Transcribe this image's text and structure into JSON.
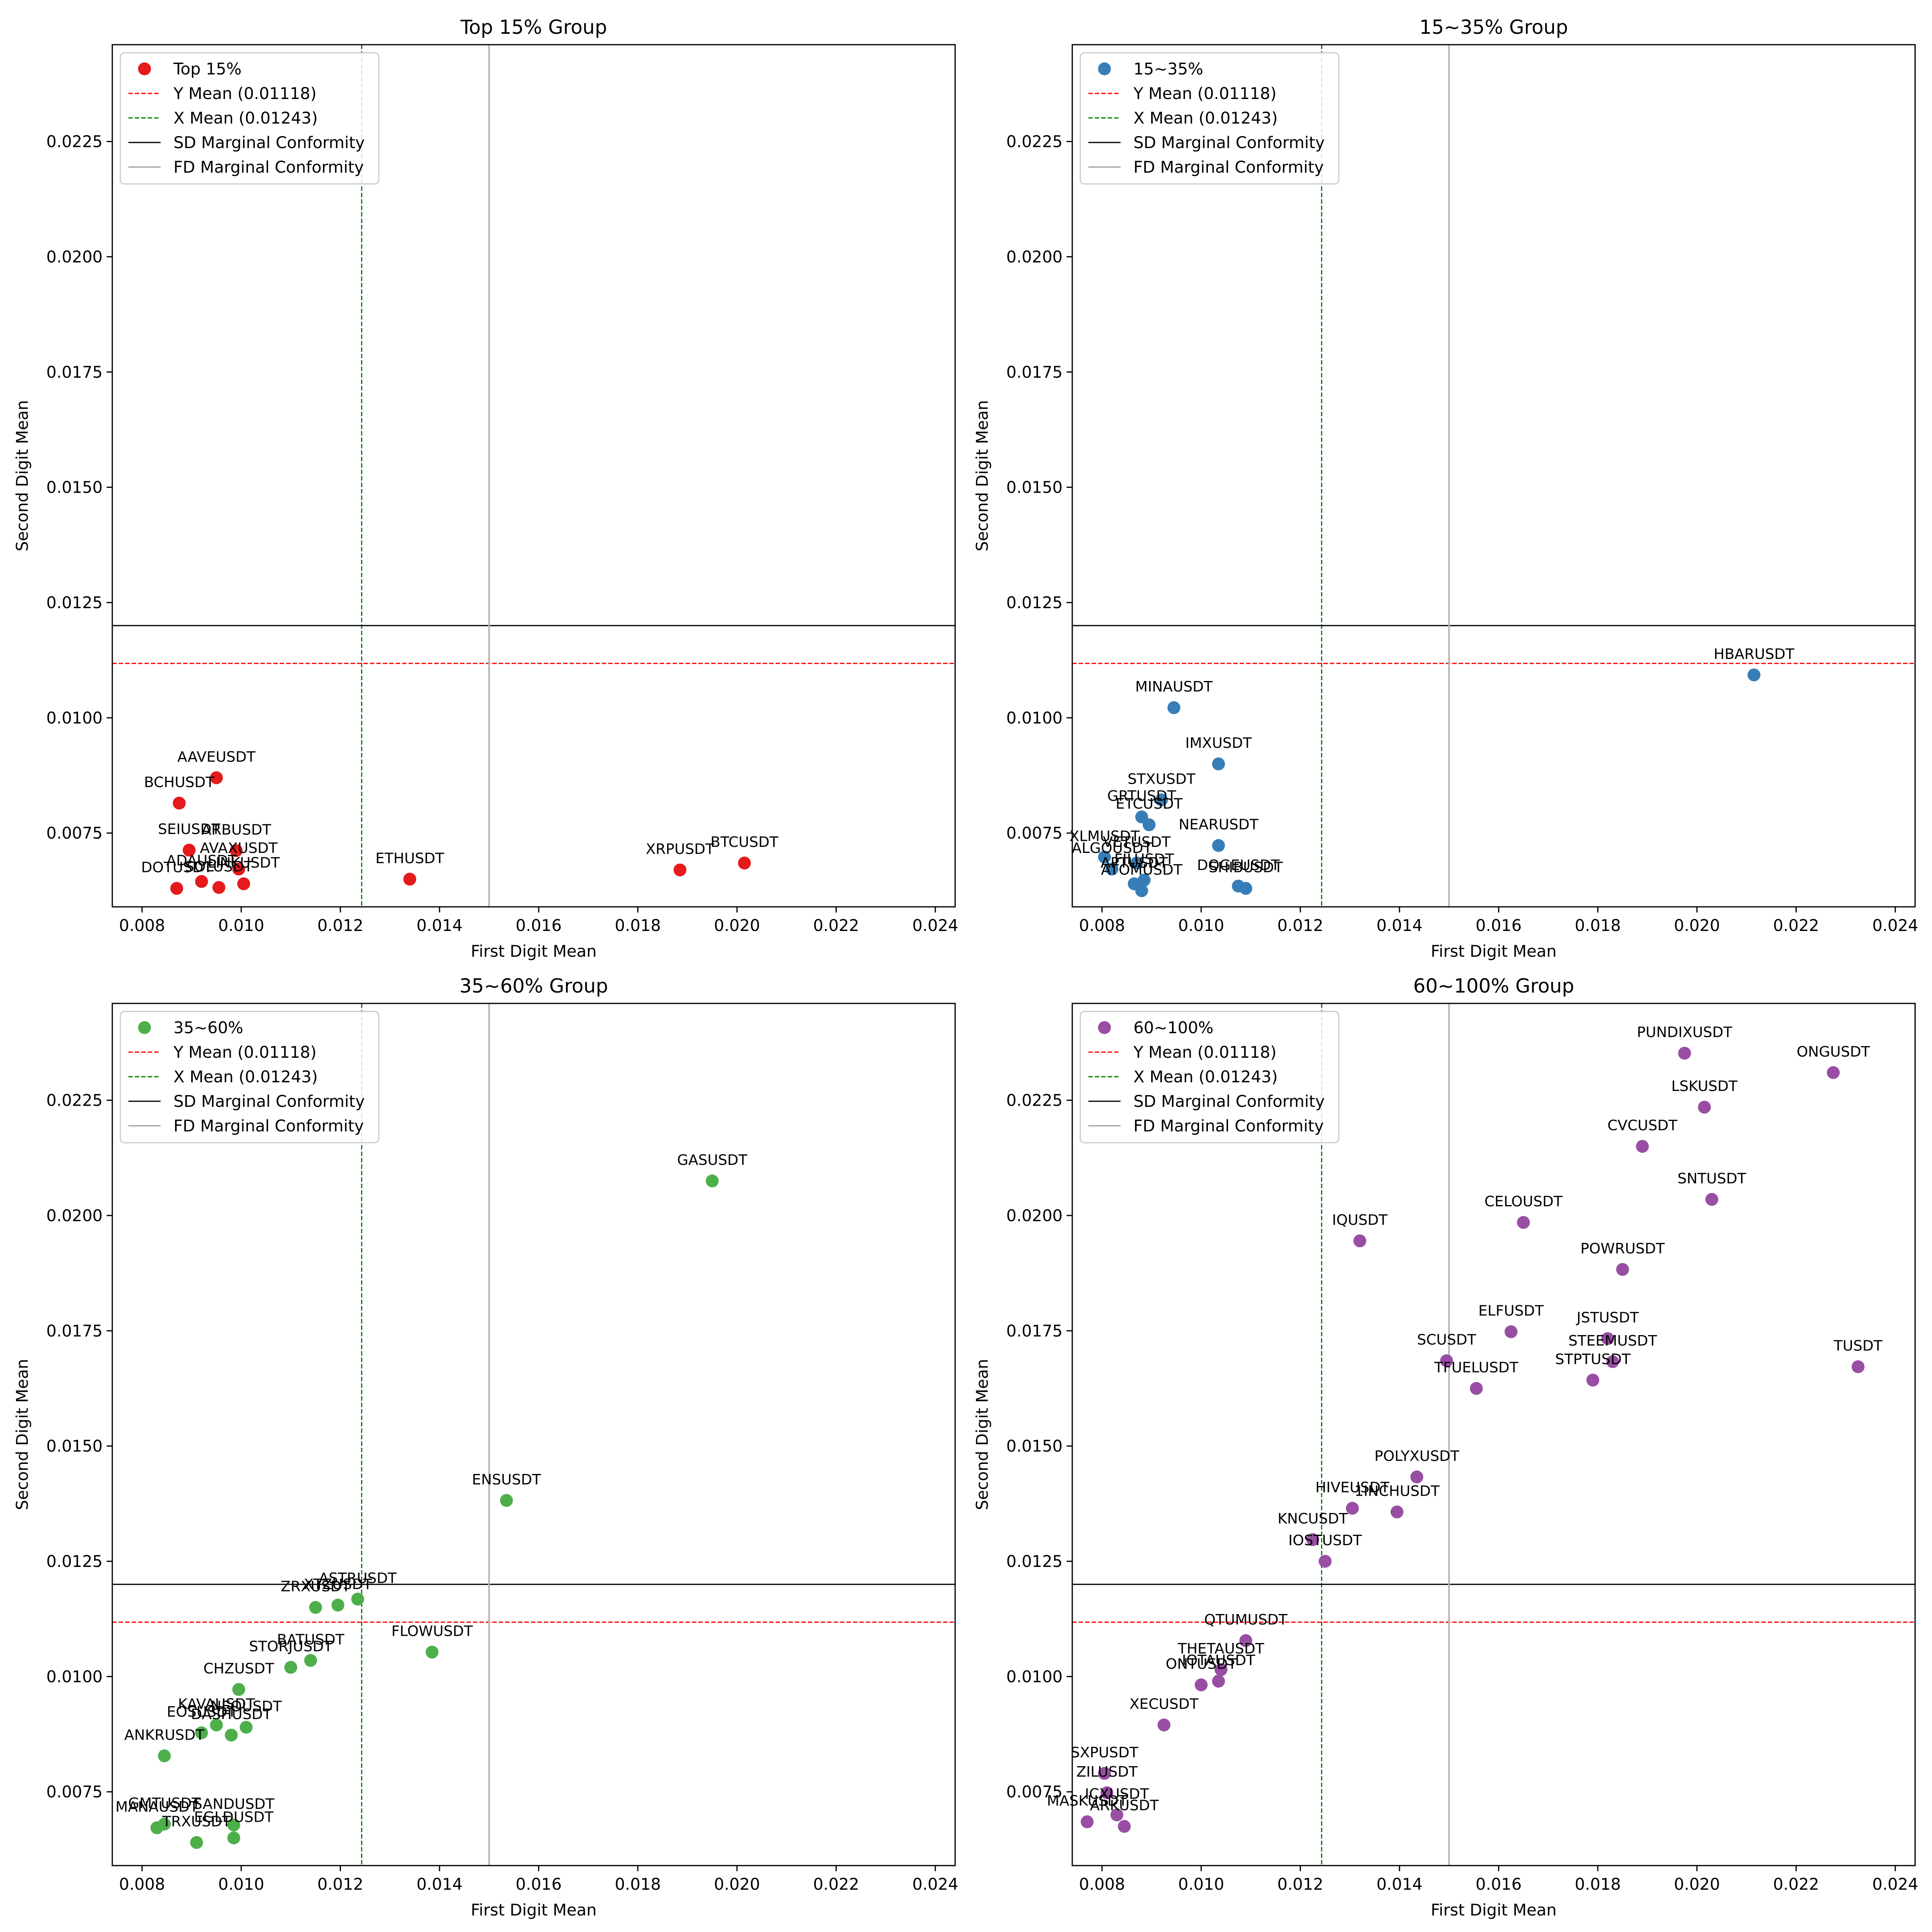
{
  "chart_data": [
    {
      "type": "scatter",
      "title": "Top 15% Group",
      "xlabel": "First Digit Mean",
      "ylabel": "Second Digit Mean",
      "xlim": [
        0.0074,
        0.0244
      ],
      "ylim": [
        0.0059,
        0.0246
      ],
      "xticks": [
        "0.008",
        "0.010",
        "0.012",
        "0.014",
        "0.016",
        "0.018",
        "0.020",
        "0.022",
        "0.024"
      ],
      "yticks": [
        "0.0075",
        "0.0100",
        "0.0125",
        "0.0150",
        "0.0175",
        "0.0200",
        "0.0225"
      ],
      "color": "#e41a1c",
      "legend_position": "top-left",
      "legend": [
        "Top 15%",
        "Y Mean (0.01118)",
        "X Mean (0.01243)",
        "SD Marginal Conformity",
        "FD Marginal Conformity"
      ],
      "reference_lines": {
        "y_mean": 0.01118,
        "x_mean": 0.01243,
        "sd_conformity_y": 0.012,
        "fd_conformity_x": 0.015
      },
      "points": [
        {
          "label": "AAVEUSDT",
          "x": 0.0095,
          "y": 0.0087
        },
        {
          "label": "BCHUSDT",
          "x": 0.00875,
          "y": 0.00815
        },
        {
          "label": "SEIUSDT",
          "x": 0.00895,
          "y": 0.00713
        },
        {
          "label": "ARBUSDT",
          "x": 0.0099,
          "y": 0.00712
        },
        {
          "label": "AVAXUSDT",
          "x": 0.00995,
          "y": 0.00672
        },
        {
          "label": "ADAUSDT",
          "x": 0.0092,
          "y": 0.00645
        },
        {
          "label": "SOLUSDT",
          "x": 0.00955,
          "y": 0.00632
        },
        {
          "label": "LINKUSDT",
          "x": 0.01005,
          "y": 0.0064
        },
        {
          "label": "DOTUSDT",
          "x": 0.0087,
          "y": 0.0063
        },
        {
          "label": "ETHUSDT",
          "x": 0.0134,
          "y": 0.0065
        },
        {
          "label": "XRPUSDT",
          "x": 0.01885,
          "y": 0.0067
        },
        {
          "label": "BTCUSDT",
          "x": 0.02015,
          "y": 0.00685
        }
      ]
    },
    {
      "type": "scatter",
      "title": "15~35% Group",
      "xlabel": "First Digit Mean",
      "ylabel": "Second Digit Mean",
      "xlim": [
        0.0074,
        0.0244
      ],
      "ylim": [
        0.0059,
        0.0246
      ],
      "xticks": [
        "0.008",
        "0.010",
        "0.012",
        "0.014",
        "0.016",
        "0.018",
        "0.020",
        "0.022",
        "0.024"
      ],
      "yticks": [
        "0.0075",
        "0.0100",
        "0.0125",
        "0.0150",
        "0.0175",
        "0.0200",
        "0.0225"
      ],
      "color": "#377eb8",
      "legend_position": "top-left",
      "legend": [
        "15~35%",
        "Y Mean (0.01118)",
        "X Mean (0.01243)",
        "SD Marginal Conformity",
        "FD Marginal Conformity"
      ],
      "reference_lines": {
        "y_mean": 0.01118,
        "x_mean": 0.01243,
        "sd_conformity_y": 0.012,
        "fd_conformity_x": 0.015
      },
      "points": [
        {
          "label": "HBARUSDT",
          "x": 0.02115,
          "y": 0.01093
        },
        {
          "label": "MINAUSDT",
          "x": 0.00945,
          "y": 0.01022
        },
        {
          "label": "IMXUSDT",
          "x": 0.01035,
          "y": 0.009
        },
        {
          "label": "STXUSDT",
          "x": 0.0092,
          "y": 0.00822
        },
        {
          "label": "GRTUSDT",
          "x": 0.0088,
          "y": 0.00785
        },
        {
          "label": "ETCUSDT",
          "x": 0.00895,
          "y": 0.00768
        },
        {
          "label": "NEARUSDT",
          "x": 0.01035,
          "y": 0.00723
        },
        {
          "label": "XLMUSDT",
          "x": 0.00805,
          "y": 0.00698
        },
        {
          "label": "VETUSDT",
          "x": 0.0087,
          "y": 0.00685
        },
        {
          "label": "ALGOUSDT",
          "x": 0.0082,
          "y": 0.00672
        },
        {
          "label": "APTUSDT",
          "x": 0.00865,
          "y": 0.0064
        },
        {
          "label": "FILUSDT",
          "x": 0.00885,
          "y": 0.00648
        },
        {
          "label": "ATOMUSDT",
          "x": 0.0088,
          "y": 0.00625
        },
        {
          "label": "DOGEUSDT",
          "x": 0.01075,
          "y": 0.00635
        },
        {
          "label": "SHIBUSDT",
          "x": 0.0109,
          "y": 0.0063
        }
      ]
    },
    {
      "type": "scatter",
      "title": "35~60% Group",
      "xlabel": "First Digit Mean",
      "ylabel": "Second Digit Mean",
      "xlim": [
        0.0074,
        0.0244
      ],
      "ylim": [
        0.0059,
        0.0246
      ],
      "xticks": [
        "0.008",
        "0.010",
        "0.012",
        "0.014",
        "0.016",
        "0.018",
        "0.020",
        "0.022",
        "0.024"
      ],
      "yticks": [
        "0.0075",
        "0.0100",
        "0.0125",
        "0.0150",
        "0.0175",
        "0.0200",
        "0.0225"
      ],
      "color": "#4daf4a",
      "legend_position": "top-left",
      "legend": [
        "35~60%",
        "Y Mean (0.01118)",
        "X Mean (0.01243)",
        "SD Marginal Conformity",
        "FD Marginal Conformity"
      ],
      "reference_lines": {
        "y_mean": 0.01118,
        "x_mean": 0.01243,
        "sd_conformity_y": 0.012,
        "fd_conformity_x": 0.015
      },
      "points": [
        {
          "label": "GASUSDT",
          "x": 0.0195,
          "y": 0.02075
        },
        {
          "label": "ENSUSDT",
          "x": 0.01535,
          "y": 0.01382
        },
        {
          "label": "ASTRUSDT",
          "x": 0.01235,
          "y": 0.01168
        },
        {
          "label": "XTZUSDT",
          "x": 0.01195,
          "y": 0.01155
        },
        {
          "label": "ZRXUSDT",
          "x": 0.0115,
          "y": 0.0115
        },
        {
          "label": "FLOWUSDT",
          "x": 0.01385,
          "y": 0.01053
        },
        {
          "label": "BATUSDT",
          "x": 0.0114,
          "y": 0.01035
        },
        {
          "label": "STORJUSDT",
          "x": 0.011,
          "y": 0.0102
        },
        {
          "label": "CHZUSDT",
          "x": 0.00995,
          "y": 0.00972
        },
        {
          "label": "KAVAUSDT",
          "x": 0.0095,
          "y": 0.00895
        },
        {
          "label": "NEOUSDT",
          "x": 0.0101,
          "y": 0.0089
        },
        {
          "label": "EOSUSDT",
          "x": 0.0092,
          "y": 0.00878
        },
        {
          "label": "DASHUSDT",
          "x": 0.0098,
          "y": 0.00873
        },
        {
          "label": "ANKRUSDT",
          "x": 0.00845,
          "y": 0.00828
        },
        {
          "label": "GMTUSDT",
          "x": 0.00845,
          "y": 0.0068
        },
        {
          "label": "MANAUSDT",
          "x": 0.0083,
          "y": 0.00672
        },
        {
          "label": "SANDUSDT",
          "x": 0.00985,
          "y": 0.00678
        },
        {
          "label": "TRXUSDT",
          "x": 0.0091,
          "y": 0.0064
        },
        {
          "label": "EGLDUSDT",
          "x": 0.00985,
          "y": 0.0065
        }
      ]
    },
    {
      "type": "scatter",
      "title": "60~100% Group",
      "xlabel": "First Digit Mean",
      "ylabel": "Second Digit Mean",
      "xlim": [
        0.0074,
        0.0244
      ],
      "ylim": [
        0.0059,
        0.0246
      ],
      "xticks": [
        "0.008",
        "0.010",
        "0.012",
        "0.014",
        "0.016",
        "0.018",
        "0.020",
        "0.022",
        "0.024"
      ],
      "yticks": [
        "0.0075",
        "0.0100",
        "0.0125",
        "0.0150",
        "0.0175",
        "0.0200",
        "0.0225"
      ],
      "color": "#984ea3",
      "legend_position": "top-left",
      "legend": [
        "60~100%",
        "Y Mean (0.01118)",
        "X Mean (0.01243)",
        "SD Marginal Conformity",
        "FD Marginal Conformity"
      ],
      "reference_lines": {
        "y_mean": 0.01118,
        "x_mean": 0.01243,
        "sd_conformity_y": 0.012,
        "fd_conformity_x": 0.015
      },
      "points": [
        {
          "label": "PUNDIXUSDT",
          "x": 0.01975,
          "y": 0.02352
        },
        {
          "label": "ONGUSDT",
          "x": 0.02275,
          "y": 0.0231
        },
        {
          "label": "LSKUSDT",
          "x": 0.02015,
          "y": 0.02235
        },
        {
          "label": "CVCUSDT",
          "x": 0.0189,
          "y": 0.0215
        },
        {
          "label": "SNTUSDT",
          "x": 0.0203,
          "y": 0.02035
        },
        {
          "label": "CELOUSDT",
          "x": 0.0165,
          "y": 0.01985
        },
        {
          "label": "IQUSDT",
          "x": 0.0132,
          "y": 0.01945
        },
        {
          "label": "POWRUSDT",
          "x": 0.0185,
          "y": 0.01883
        },
        {
          "label": "ELFUSDT",
          "x": 0.01625,
          "y": 0.01748
        },
        {
          "label": "JSTUSDT",
          "x": 0.0182,
          "y": 0.01733
        },
        {
          "label": "SCUSDT",
          "x": 0.01495,
          "y": 0.01685
        },
        {
          "label": "STEEMUSDT",
          "x": 0.0183,
          "y": 0.01683
        },
        {
          "label": "TUSDT",
          "x": 0.02325,
          "y": 0.01672
        },
        {
          "label": "STPTUSDT",
          "x": 0.0179,
          "y": 0.01643
        },
        {
          "label": "TFUELUSDT",
          "x": 0.01555,
          "y": 0.01625
        },
        {
          "label": "POLYXUSDT",
          "x": 0.01435,
          "y": 0.01433
        },
        {
          "label": "HIVEUSDT",
          "x": 0.01305,
          "y": 0.01365
        },
        {
          "label": "1INCHUSDT",
          "x": 0.01395,
          "y": 0.01357
        },
        {
          "label": "KNCUSDT",
          "x": 0.01225,
          "y": 0.01297
        },
        {
          "label": "IOSTUSDT",
          "x": 0.0125,
          "y": 0.0125
        },
        {
          "label": "QTUMUSDT",
          "x": 0.0109,
          "y": 0.01078
        },
        {
          "label": "THETAUSDT",
          "x": 0.0104,
          "y": 0.01015
        },
        {
          "label": "IOTAUSDT",
          "x": 0.01035,
          "y": 0.0099
        },
        {
          "label": "ONTUSDT",
          "x": 0.01,
          "y": 0.00982
        },
        {
          "label": "XECUSDT",
          "x": 0.00925,
          "y": 0.00895
        },
        {
          "label": "SXPUSDT",
          "x": 0.00805,
          "y": 0.0079
        },
        {
          "label": "ZILUSDT",
          "x": 0.0081,
          "y": 0.00748
        },
        {
          "label": "ICXUSDT",
          "x": 0.0083,
          "y": 0.007
        },
        {
          "label": "MASKUSDT",
          "x": 0.0077,
          "y": 0.00685
        },
        {
          "label": "ARKUSDT",
          "x": 0.00845,
          "y": 0.00675
        }
      ]
    }
  ]
}
